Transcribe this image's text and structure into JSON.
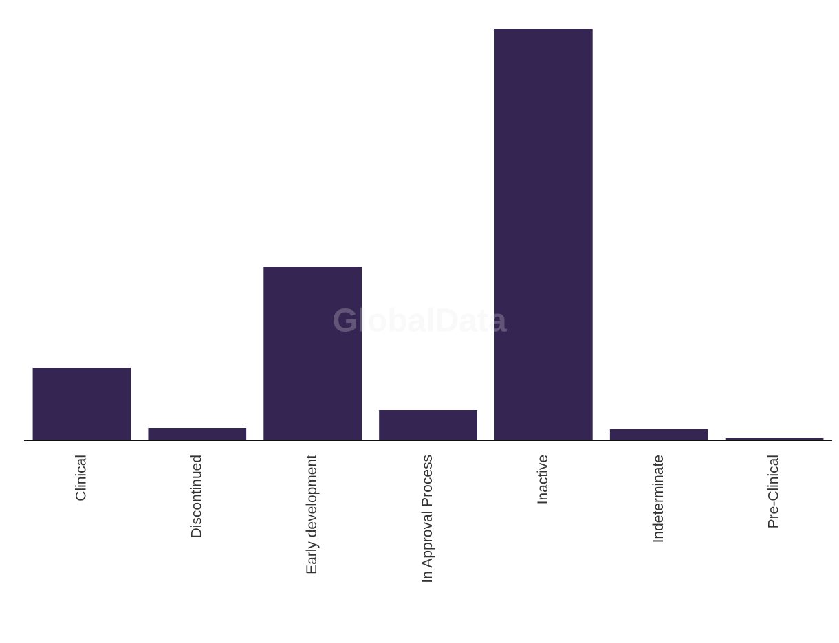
{
  "chart_data": {
    "type": "bar",
    "watermark": "GlobalData",
    "categories": [
      "Clinical",
      "Discontinued",
      "Early development",
      "In Approval Process",
      "Inactive",
      "Indeterminate",
      "Pre-Clinical"
    ],
    "values": [
      106,
      18,
      253,
      44,
      599,
      16,
      3
    ],
    "color": "#352552",
    "ylim": [
      0,
      599
    ]
  }
}
